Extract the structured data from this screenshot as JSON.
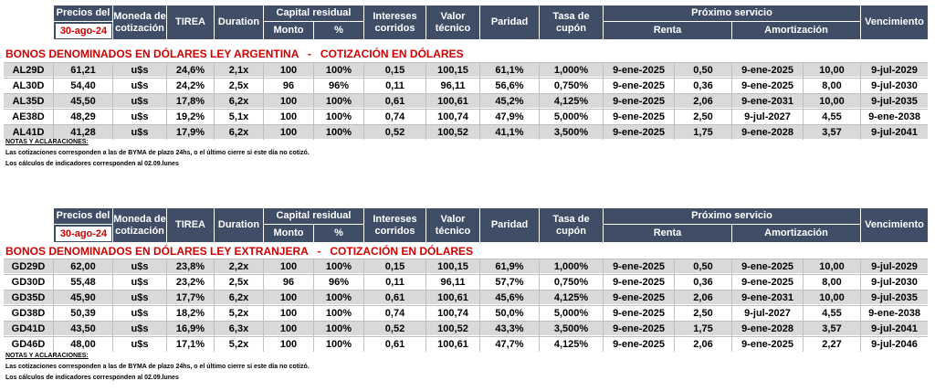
{
  "header": {
    "precios_del": "Precios del",
    "date": "30-ago-24",
    "moneda": "Moneda de cotización",
    "tirea": "TIREA",
    "duration": "Duration",
    "capital_residual": "Capital residual",
    "monto": "Monto",
    "pct": "%",
    "intereses": "Intereses corridos",
    "valor_tecnico": "Valor técnico",
    "paridad": "Paridad",
    "tasa_cupon": "Tasa de cupón",
    "proximo_servicio": "Próximo servicio",
    "renta": "Renta",
    "amortizacion": "Amortización",
    "vencimiento": "Vencimiento"
  },
  "section1": {
    "title": "BONOS DENOMINADOS EN DÓLARES LEY ARGENTINA   -   COTIZACIÓN EN DÓLARES",
    "rows": [
      [
        "AL29D",
        "61,21",
        "u$s",
        "24,6%",
        "2,1x",
        "100",
        "100%",
        "0,15",
        "100,15",
        "61,1%",
        "1,000%",
        "9-ene-2025",
        "0,50",
        "9-ene-2025",
        "10,00",
        "9-jul-2029"
      ],
      [
        "AL30D",
        "54,40",
        "u$s",
        "24,2%",
        "2,5x",
        "96",
        "96%",
        "0,11",
        "96,11",
        "56,6%",
        "0,750%",
        "9-ene-2025",
        "0,36",
        "9-ene-2025",
        "8,00",
        "9-jul-2030"
      ],
      [
        "AL35D",
        "45,50",
        "u$s",
        "17,8%",
        "6,2x",
        "100",
        "100%",
        "0,61",
        "100,61",
        "45,2%",
        "4,125%",
        "9-ene-2025",
        "2,06",
        "9-ene-2031",
        "10,00",
        "9-jul-2035"
      ],
      [
        "AE38D",
        "48,29",
        "u$s",
        "19,2%",
        "5,1x",
        "100",
        "100%",
        "0,74",
        "100,74",
        "47,9%",
        "5,000%",
        "9-ene-2025",
        "2,50",
        "9-jul-2027",
        "4,55",
        "9-ene-2038"
      ],
      [
        "AL41D",
        "41,28",
        "u$s",
        "17,9%",
        "6,2x",
        "100",
        "100%",
        "0,52",
        "100,52",
        "41,1%",
        "3,500%",
        "9-ene-2025",
        "1,75",
        "9-ene-2028",
        "3,57",
        "9-jul-2041"
      ]
    ],
    "notes_title": "NOTAS Y ACLARACIONES:",
    "note1": "Las cotizaciones corresponden a las de BYMA de plazo 24hs, o el último cierre si este día no cotizó.",
    "note2": "Los cálculos de indicadores corresponden al 02.09.lunes"
  },
  "section2": {
    "title": "BONOS DENOMINADOS EN DÓLARES LEY EXTRANJERA   -   COTIZACIÓN EN DÓLARES",
    "rows": [
      [
        "GD29D",
        "62,00",
        "u$s",
        "23,8%",
        "2,2x",
        "100",
        "100%",
        "0,15",
        "100,15",
        "61,9%",
        "1,000%",
        "9-ene-2025",
        "0,50",
        "9-ene-2025",
        "10,00",
        "9-jul-2029"
      ],
      [
        "GD30D",
        "55,48",
        "u$s",
        "23,2%",
        "2,5x",
        "96",
        "96%",
        "0,11",
        "96,11",
        "57,7%",
        "0,750%",
        "9-ene-2025",
        "0,36",
        "9-ene-2025",
        "8,00",
        "9-jul-2030"
      ],
      [
        "GD35D",
        "45,90",
        "u$s",
        "17,7%",
        "6,2x",
        "100",
        "100%",
        "0,61",
        "100,61",
        "45,6%",
        "4,125%",
        "9-ene-2025",
        "2,06",
        "9-ene-2031",
        "10,00",
        "9-jul-2035"
      ],
      [
        "GD38D",
        "50,39",
        "u$s",
        "18,2%",
        "5,2x",
        "100",
        "100%",
        "0,74",
        "100,74",
        "50,0%",
        "5,000%",
        "9-ene-2025",
        "2,50",
        "9-jul-2027",
        "4,55",
        "9-ene-2038"
      ],
      [
        "GD41D",
        "43,50",
        "u$s",
        "16,9%",
        "6,3x",
        "100",
        "100%",
        "0,52",
        "100,52",
        "43,3%",
        "3,500%",
        "9-ene-2025",
        "1,75",
        "9-ene-2028",
        "3,57",
        "9-jul-2041"
      ],
      [
        "GD46D",
        "48,00",
        "u$s",
        "17,1%",
        "5,2x",
        "100",
        "100%",
        "0,61",
        "100,61",
        "47,7%",
        "4,125%",
        "9-ene-2025",
        "2,06",
        "9-ene-2025",
        "2,27",
        "9-jul-2046"
      ]
    ],
    "notes_title": "NOTAS Y ACLARACIONES:",
    "note1": "Las cotizaciones corresponden a las de BYMA de plazo 24hs, o el último cierre si este día no cotizó.",
    "note2": "Los cálculos de indicadores corresponden al 02.09.lunes"
  }
}
